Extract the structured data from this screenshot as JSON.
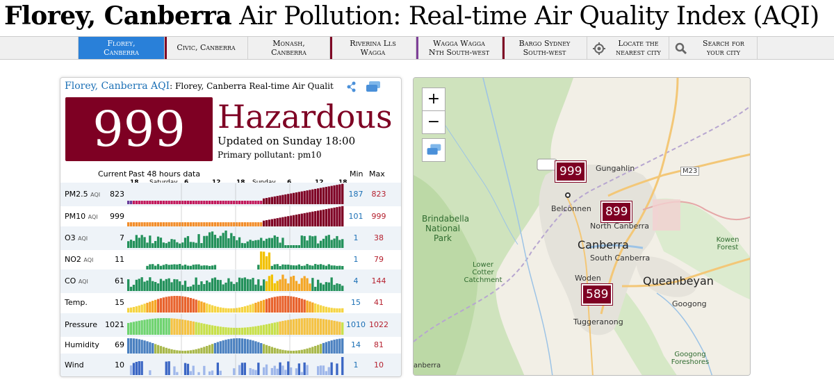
{
  "title": {
    "city": "Florey, Canberra",
    "rest": "Air Pollution: Real-time Air Quality Index (AQI)"
  },
  "nav": [
    {
      "line1": "Florey,",
      "line2": "Canberra",
      "active": true,
      "color": ""
    },
    {
      "line1": "Civic, Canberra",
      "line2": "",
      "active": false,
      "color": "#7e0023"
    },
    {
      "line1": "Monash,",
      "line2": "Canberra",
      "active": false,
      "color": "#7e0023"
    },
    {
      "line1": "Riverina Lls",
      "line2": "Wagga",
      "active": false,
      "color": "#7e0023"
    },
    {
      "line1": "Wagga Wagga",
      "line2": "Nth South-west",
      "active": false,
      "color": "#7e3f98"
    },
    {
      "line1": "Bargo Sydney",
      "line2": "South-west",
      "active": false,
      "color": "#7e0023"
    },
    {
      "line1": "Locate the",
      "line2": "nearest city",
      "icon": "locate-icon"
    },
    {
      "line1": "Search for",
      "line2": "your city",
      "icon": "search-icon"
    }
  ],
  "card": {
    "city_label": "Florey, Canberra AQI",
    "subtitle": ": Florey, Canberra Real-time Air Qualit",
    "aqi": "999",
    "level": "Hazardous",
    "level_color": "#7e0023",
    "updated": "Updated on Sunday 18:00",
    "primary": "Primary pollutant: pm10",
    "headers": {
      "current": "Current",
      "past": "Past 48 hours data",
      "min": "Min",
      "max": "Max"
    },
    "ticks": [
      "18",
      "Saturday",
      "6",
      "12",
      "18",
      "Sunday",
      "6",
      "12",
      "18"
    ],
    "icons": [
      "share-icon",
      "layers-icon"
    ]
  },
  "rows": [
    {
      "name": "PM2.5",
      "unit": "AQI",
      "current": "823",
      "min": "187",
      "max": "823",
      "style": "pm25"
    },
    {
      "name": "PM10",
      "unit": "AQI",
      "current": "999",
      "min": "101",
      "max": "999",
      "style": "pm10"
    },
    {
      "name": "O3",
      "unit": "AQI",
      "current": "7",
      "min": "1",
      "max": "38",
      "style": "o3"
    },
    {
      "name": "NO2",
      "unit": "AQI",
      "current": "11",
      "min": "1",
      "max": "79",
      "style": "no2"
    },
    {
      "name": "CO",
      "unit": "AQI",
      "current": "61",
      "min": "4",
      "max": "144",
      "style": "co"
    },
    {
      "name": "Temp.",
      "unit": "",
      "current": "15",
      "min": "15",
      "max": "41",
      "style": "temp"
    },
    {
      "name": "Pressure",
      "unit": "",
      "current": "1021",
      "min": "1010",
      "max": "1022",
      "style": "press"
    },
    {
      "name": "Humidity",
      "unit": "",
      "current": "69",
      "min": "14",
      "max": "81",
      "style": "hum"
    },
    {
      "name": "Wind",
      "unit": "",
      "current": "10",
      "min": "1",
      "max": "10",
      "style": "wind"
    }
  ],
  "map": {
    "zoom_in": "+",
    "zoom_out": "−",
    "labels": {
      "gungahlin": "Gungahlin",
      "belconnen": "Belconnen",
      "north": "North Canberra",
      "canberra": "Canberra",
      "south": "South Canberra",
      "woden": "Woden",
      "queanbeyan": "Queanbeyan",
      "tuggeranong": "Tuggeranong",
      "googong": "Googong",
      "brindabella": "Brindabella National Park",
      "cotter": "Lower Cotter Catchment",
      "kowen": "Kowen Forest",
      "googongfs": "Googong Foreshores",
      "m23": "M23",
      "ebri": "anberra"
    },
    "markers": [
      {
        "value": "999",
        "name": "belconnen-marker"
      },
      {
        "value": "899",
        "name": "north-canberra-marker"
      },
      {
        "value": "589",
        "name": "tuggeranong-marker"
      }
    ]
  }
}
